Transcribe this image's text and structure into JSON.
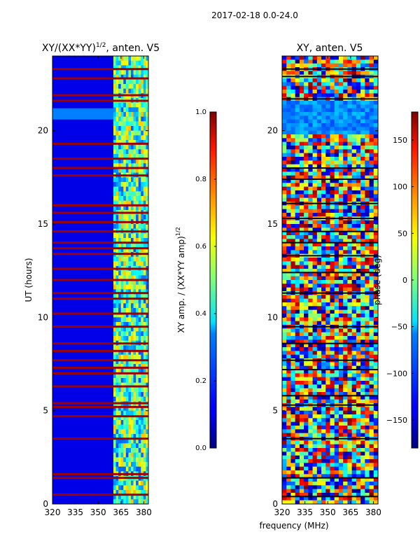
{
  "figure_title": "2017-02-18 0.0-24.0",
  "chart_data": [
    {
      "type": "heatmap",
      "title_main": "XY/(XX*YY)",
      "title_sup": "1/2",
      "title_rest": ", anten. V5",
      "xlabel": "frequency (MHz)",
      "ylabel": "UT (hours)",
      "xlim": [
        320,
        383
      ],
      "ylim": [
        0,
        24
      ],
      "xticks": [
        320,
        335,
        350,
        365,
        380
      ],
      "yticks": [
        0,
        5,
        10,
        15,
        20
      ],
      "colorbar": {
        "label_main": "XY amp. / (XX*YY amp)",
        "label_sup": "1/2",
        "range": [
          0.0,
          1.0
        ],
        "ticks": [
          "0.0",
          "0.2",
          "0.4",
          "0.6",
          "0.8",
          "1.0"
        ],
        "colormap": "jet"
      },
      "low_band_level": 0.1,
      "rfi_band_start_mhz": 360,
      "bright_band_ut": [
        20.6,
        21.2
      ],
      "flag_rows_ut": [
        0.5,
        1.4,
        1.6,
        3.5,
        4.7,
        5.2,
        5.4,
        6.3,
        7.0,
        7.3,
        7.7,
        8.2,
        8.6,
        9.5,
        10.2,
        11.0,
        11.3,
        12.0,
        12.6,
        13.4,
        13.7,
        14.0,
        14.6,
        15.1,
        15.6,
        16.0,
        17.6,
        18.0,
        18.5,
        19.3,
        21.6,
        21.9,
        22.8,
        23.3
      ]
    },
    {
      "type": "heatmap",
      "title": "XY, anten. V5",
      "xlabel": "frequency (MHz)",
      "ylabel": "",
      "xlim": [
        320,
        383
      ],
      "ylim": [
        0,
        24
      ],
      "xticks": [
        320,
        335,
        350,
        365,
        380
      ],
      "yticks": [
        0,
        5,
        10,
        15,
        20
      ],
      "colorbar": {
        "label": "phase (deg)",
        "range": [
          -180,
          180
        ],
        "ticks": [
          "150",
          "100",
          "50",
          "0",
          "−50",
          "−100",
          "−150"
        ],
        "tick_values": [
          150,
          100,
          50,
          0,
          -50,
          -100,
          -150
        ],
        "colormap": "jet"
      },
      "phase_uniform_band_ut": [
        19.8,
        21.6
      ],
      "flag_rows_ut": [
        0.4,
        1.4,
        3.5,
        5.3,
        5.8,
        7.2,
        7.7,
        8.6,
        9.5,
        11.3,
        12.4,
        13.3,
        14.0,
        14.6,
        15.3,
        16.1,
        17.4,
        18.0,
        21.7,
        22.9,
        23.3
      ]
    }
  ]
}
